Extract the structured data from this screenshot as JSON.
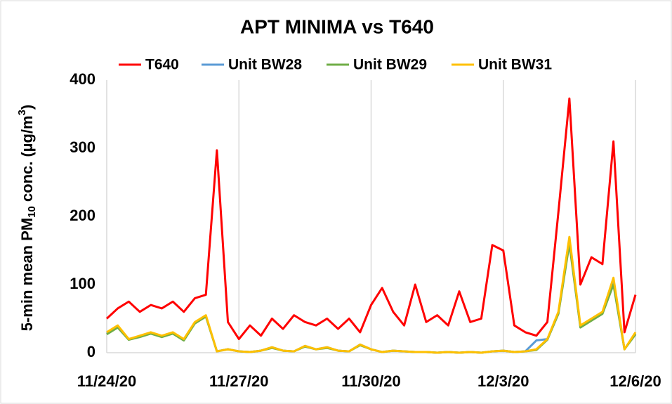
{
  "chart_data": {
    "type": "line",
    "title": "APT MINIMA vs T640",
    "y_label_parts": [
      "5-min mean PM",
      "10",
      " conc. (µg/m",
      "3",
      ")"
    ],
    "x": [
      0,
      0.25,
      0.5,
      0.75,
      1,
      1.25,
      1.5,
      1.75,
      2,
      2.25,
      2.5,
      2.75,
      3,
      3.25,
      3.5,
      3.75,
      4,
      4.25,
      4.5,
      4.75,
      5,
      5.25,
      5.5,
      5.75,
      6,
      6.25,
      6.5,
      6.75,
      7,
      7.25,
      7.5,
      7.75,
      8,
      8.25,
      8.5,
      8.75,
      9,
      9.25,
      9.5,
      9.75,
      10,
      10.25,
      10.5,
      10.75,
      11,
      11.25,
      11.5,
      11.75,
      12
    ],
    "series": [
      {
        "name": "T640",
        "color": "#ff0000",
        "values": [
          50,
          65,
          75,
          60,
          70,
          65,
          75,
          60,
          80,
          85,
          297,
          45,
          20,
          40,
          25,
          50,
          35,
          55,
          45,
          40,
          50,
          35,
          50,
          30,
          70,
          95,
          60,
          40,
          100,
          45,
          55,
          40,
          90,
          45,
          50,
          158,
          150,
          40,
          30,
          25,
          45,
          206,
          373,
          100,
          140,
          130,
          310,
          30,
          85
        ]
      },
      {
        "name": "Unit BW28",
        "color": "#5b9bd5",
        "values": [
          28,
          38,
          20,
          24,
          29,
          24,
          29,
          19,
          44,
          54,
          2,
          5,
          2,
          1,
          3,
          8,
          3,
          2,
          10,
          5,
          8,
          3,
          2,
          12,
          5,
          1,
          3,
          2,
          1,
          1,
          0,
          1,
          0,
          1,
          0,
          2,
          3,
          1,
          2,
          18,
          20,
          58,
          165,
          38,
          48,
          58,
          105,
          5,
          28
        ]
      },
      {
        "name": "Unit BW29",
        "color": "#70ad47",
        "values": [
          27,
          37,
          19,
          23,
          28,
          23,
          28,
          18,
          43,
          53,
          2,
          5,
          2,
          1,
          3,
          7,
          3,
          2,
          9,
          5,
          7,
          3,
          2,
          11,
          5,
          1,
          3,
          2,
          1,
          1,
          0,
          1,
          0,
          1,
          0,
          2,
          3,
          1,
          2,
          4,
          19,
          57,
          160,
          37,
          47,
          57,
          100,
          5,
          27
        ]
      },
      {
        "name": "Unit BW31",
        "color": "#ffc000",
        "values": [
          30,
          40,
          20,
          25,
          30,
          25,
          30,
          20,
          45,
          55,
          2,
          5,
          2,
          1,
          3,
          8,
          3,
          2,
          10,
          5,
          8,
          3,
          2,
          12,
          5,
          1,
          3,
          2,
          1,
          1,
          0,
          1,
          0,
          1,
          0,
          2,
          3,
          1,
          2,
          5,
          20,
          60,
          170,
          40,
          50,
          60,
          110,
          5,
          30
        ]
      }
    ],
    "xlim": [
      0,
      12
    ],
    "xticks": [
      {
        "value": 0,
        "label": "11/24/20"
      },
      {
        "value": 3,
        "label": "11/27/20"
      },
      {
        "value": 6,
        "label": "11/30/20"
      },
      {
        "value": 9,
        "label": "12/3/20"
      },
      {
        "value": 12,
        "label": "12/6/20"
      }
    ],
    "ylim": [
      0,
      400
    ],
    "yticks": [
      0,
      100,
      200,
      300,
      400
    ],
    "grid": "x",
    "legend": "top"
  }
}
